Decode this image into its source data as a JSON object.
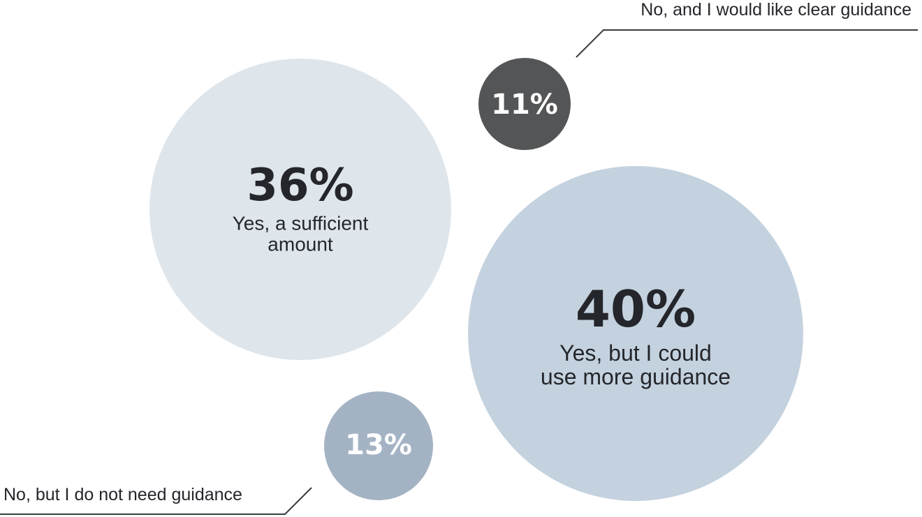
{
  "chart_data": {
    "type": "bubble",
    "items": [
      {
        "value": 36,
        "percent_label": "36%",
        "text_lines": [
          "Yes, a sufficient",
          "amount"
        ],
        "callout": "",
        "color": "#dee5eb",
        "text_color": "#24262b"
      },
      {
        "value": 40,
        "percent_label": "40%",
        "text_lines": [
          "Yes, but I could",
          "use more guidance"
        ],
        "callout": "",
        "color": "#c4d2df",
        "text_color": "#24262b"
      },
      {
        "value": 11,
        "percent_label": "11%",
        "text_lines": [],
        "callout": "No, and I would like clear guidance",
        "color": "#545557",
        "text_color": "#ffffff"
      },
      {
        "value": 13,
        "percent_label": "13%",
        "text_lines": [],
        "callout": "No, but I do not need guidance",
        "color": "#a4b3c4",
        "text_color": "#ffffff"
      }
    ],
    "callout_line_color": "#3a3b3d"
  }
}
